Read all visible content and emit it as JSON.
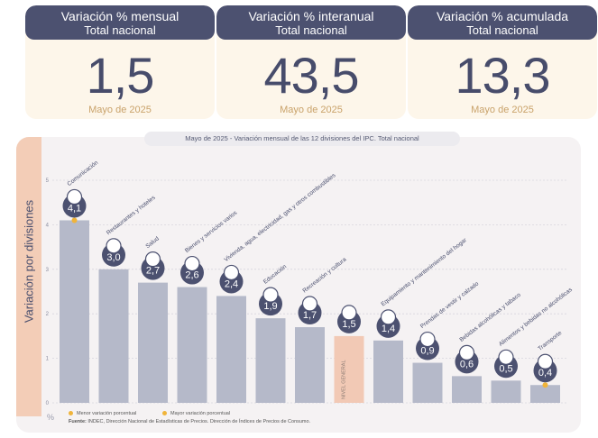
{
  "kpis": [
    {
      "title": "Variación % mensual",
      "subtitle": "Total nacional",
      "value": "1,5",
      "date": "Mayo de 2025"
    },
    {
      "title": "Variación % interanual",
      "subtitle": "Total nacional",
      "value": "43,5",
      "date": "Mayo de 2025"
    },
    {
      "title": "Variación % acumulada",
      "subtitle": "Total nacional",
      "value": "13,3",
      "date": "Mayo de 2025"
    }
  ],
  "chart_data": {
    "type": "bar",
    "title": "Mayo de 2025 - Variación mensual de las 12 divisiones del IPC. Total nacional",
    "ylabel": "Variación por divisiones",
    "yunit": "%",
    "ylim": [
      0,
      5
    ],
    "yticks": [
      "0",
      "1",
      "2",
      "3",
      "4",
      "5"
    ],
    "grid": true,
    "categories": [
      "Comunicación",
      "Restaurantes y hoteles",
      "Salud",
      "Bienes y servicios varios",
      "Vivienda, agua, electricidad, gas y otros combustibles",
      "Educación",
      "Recreación y cultura",
      "NIVEL GENERAL",
      "Equipamiento y mantenimiento del hogar",
      "Prendas de vestir y calzado",
      "Bebidas alcohólicas y tabaco",
      "Alimentos y bebidas no alcohólicas",
      "Transporte"
    ],
    "values": [
      4.1,
      3.0,
      2.7,
      2.6,
      2.4,
      1.9,
      1.7,
      1.5,
      1.4,
      0.9,
      0.6,
      0.5,
      0.4
    ],
    "value_labels": [
      "4,1",
      "3,0",
      "2,7",
      "2,6",
      "2,4",
      "1,9",
      "1,7",
      "1,5",
      "1,4",
      "0,9",
      "0,6",
      "0,5",
      "0,4"
    ],
    "icons": [
      "phone-icon",
      "restaurant-icon",
      "health-cross-icon",
      "scissors-icon",
      "bulb-icon",
      "book-icon",
      "umbrella-icon",
      "basket-icon",
      "fan-icon",
      "shirt-icon",
      "bottle-icon",
      "food-icon",
      "bus-icon"
    ],
    "colors": {
      "bar": "#b5b9c9",
      "general_bar": "#f2c9b5",
      "bubble": "#4c5170",
      "marker": "#f0b43a",
      "grid": "#d8d6de"
    },
    "legend": [
      {
        "label": "Menor variación porcentual"
      },
      {
        "label": "Mayor variación porcentual"
      }
    ],
    "legend_position": "bottom-left"
  },
  "source_label": "Fuente:",
  "source_text": "INDEC, Dirección Nacional de Estadísticas de Precios. Dirección de Índices de Precios de Consumo."
}
